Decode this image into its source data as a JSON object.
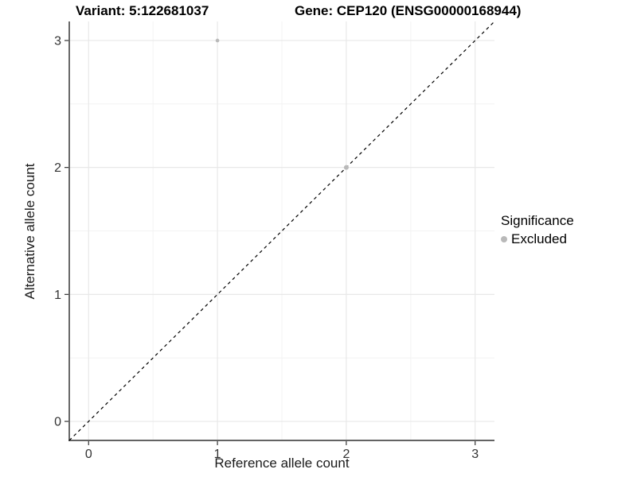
{
  "chart_data": {
    "type": "scatter",
    "title_left": "Variant: 5:122681037",
    "title_right": "Gene: CEP120 (ENSG00000168944)",
    "xlabel": "Reference allele count",
    "ylabel": "Alternative allele count",
    "xlim": [
      -0.15,
      3.15
    ],
    "ylim": [
      -0.15,
      3.15
    ],
    "xticks": [
      0,
      1,
      2,
      3
    ],
    "yticks": [
      0,
      1,
      2,
      3
    ],
    "xtick_labels": [
      "0",
      "1",
      "2",
      "3"
    ],
    "ytick_labels": [
      "0",
      "1",
      "2",
      "3"
    ],
    "grid": "on",
    "minor_gridlines": true,
    "identity_line": {
      "style": "dashed",
      "color": "#000000",
      "from": [
        -0.15,
        -0.15
      ],
      "to": [
        3.15,
        3.15
      ]
    },
    "points": [
      {
        "x": 1,
        "y": 3,
        "significance": "Excluded",
        "color": "#b9b9b9",
        "radius": 2.3
      },
      {
        "x": 2,
        "y": 2,
        "significance": "Excluded",
        "color": "#b9b9b9",
        "radius": 3.0
      }
    ],
    "legend": {
      "title": "Significance",
      "position": "right",
      "entries": [
        {
          "label": "Excluded",
          "color": "#b9b9b9"
        }
      ]
    },
    "colors": {
      "gridline_major": "#e8e8e8",
      "gridline_minor": "#f3f3f3",
      "axis_line": "#4d4d4d",
      "tick_mark": "#333333",
      "tick_text": "#333333"
    }
  }
}
